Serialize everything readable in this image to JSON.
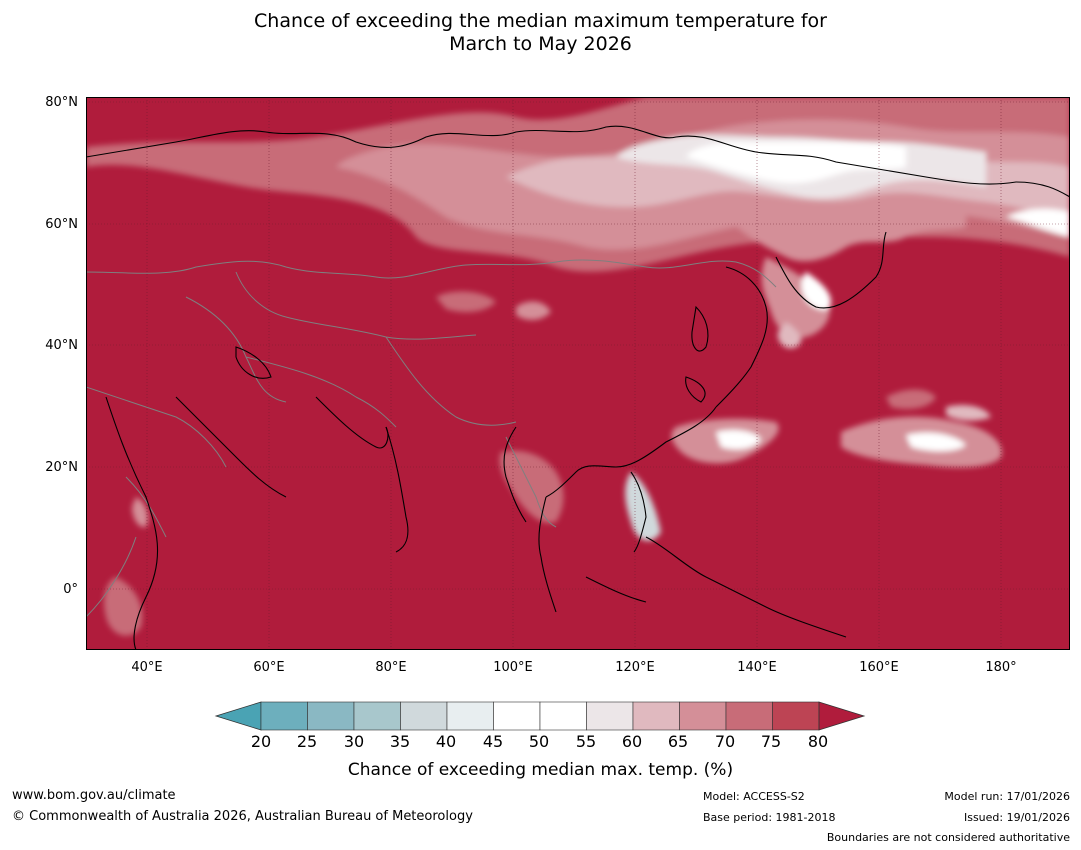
{
  "title": {
    "line1": "Chance of exceeding the median maximum temperature for",
    "line2": "March to May 2026"
  },
  "map": {
    "type": "filled-contour-probability-map",
    "region": "Asia",
    "lat_range": [
      -10,
      80
    ],
    "lon_range": [
      30,
      191
    ],
    "lat_ticks": [
      "80°N",
      "60°N",
      "40°N",
      "20°N",
      "0°"
    ],
    "lon_ticks": [
      "40°E",
      "60°E",
      "80°E",
      "100°E",
      "120°E",
      "140°E",
      "160°E",
      "180°"
    ],
    "dominant_class": ">80",
    "highlighted_regions": [
      {
        "name": "northern Siberia / Arctic",
        "class": "45-65"
      },
      {
        "name": "eastern Siberia",
        "class": "45-60"
      },
      {
        "name": "Sea of Okhotsk / Kamchatka",
        "class": "55-70"
      },
      {
        "name": "western Pacific north of 20°N",
        "class": "45-70"
      },
      {
        "name": "Philippines",
        "class": "40-60"
      },
      {
        "name": "Indochina",
        "class": "65-75"
      }
    ],
    "colors": {
      "above80": "#b01c3c",
      "lines_coast": "#000000",
      "lines_border": "#7f7f7f",
      "grid": "#6b1a2c"
    }
  },
  "colorbar": {
    "ticks": [
      "20",
      "25",
      "30",
      "35",
      "40",
      "45",
      "50",
      "55",
      "60",
      "65",
      "70",
      "75",
      "80"
    ],
    "colors": [
      "#4aa3b4",
      "#6dafbd",
      "#8ab8c3",
      "#a8c7cc",
      "#d0d9dc",
      "#e8eef0",
      "#ffffff",
      "#ffffff",
      "#ece6e8",
      "#e0b9bf",
      "#d48f98",
      "#c86c78",
      "#bd4454",
      "#b01c3c"
    ],
    "label": "Chance of exceeding median max. temp. (%)"
  },
  "footer": {
    "url": "www.bom.gov.au/climate",
    "copyright": "© Commonwealth of Australia 2026, Australian Bureau of Meteorology",
    "model": "Model: ACCESS-S2",
    "base_period": "Base period: 1981-2018",
    "model_run": "Model run: 17/01/2026",
    "issued": "Issued: 19/01/2026",
    "disclaimer": "Boundaries are not considered authoritative"
  }
}
